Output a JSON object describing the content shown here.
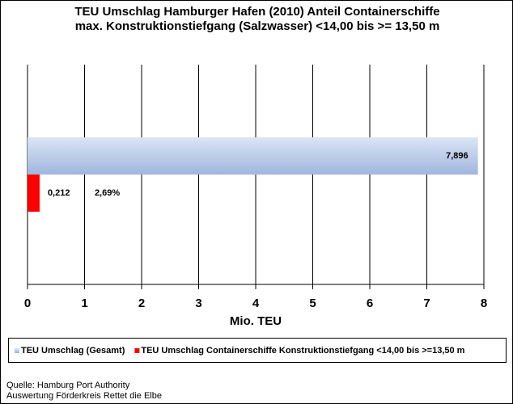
{
  "chart_data": {
    "type": "hbar",
    "title": [
      "TEU Umschlag Hamburger Hafen (2010) Anteil Containerschiffe",
      "max. Konstruktionstiefgang (Salzwasser) <14,00 bis >= 13,50 m"
    ],
    "categories": [
      null
    ],
    "series": [
      {
        "name": "TEU Umschlag (Gesamt)",
        "color": "#b4c7e7",
        "values": [
          7.896
        ],
        "value_labels": [
          "7,896"
        ]
      },
      {
        "name": "TEU Umschlag Containerschiffe Konstruktionstiefgang <14,00 bis >=13,50 m",
        "color": "#ff0000",
        "values": [
          0.212
        ],
        "value_labels": [
          "0,212"
        ]
      }
    ],
    "annotation": "2,69%",
    "x_label": "Mio. TEU",
    "xlim": [
      0,
      8
    ],
    "xticks": [
      0,
      1,
      2,
      3,
      4,
      5,
      6,
      7,
      8
    ],
    "grid": true,
    "legend": "bottom",
    "source": [
      "Quelle: Hamburg Port Authority",
      "Auswertung Förderkreis Rettet die Elbe"
    ]
  }
}
